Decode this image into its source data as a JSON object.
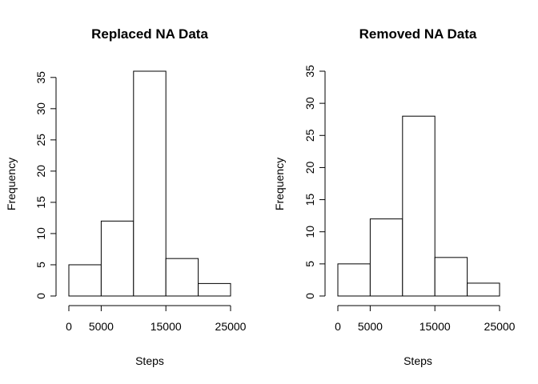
{
  "chart_data": [
    {
      "type": "bar",
      "title": "Replaced NA Data",
      "xlabel": "Steps",
      "ylabel": "Frequency",
      "bins": [
        [
          0,
          5000
        ],
        [
          5000,
          10000
        ],
        [
          10000,
          15000
        ],
        [
          15000,
          20000
        ],
        [
          20000,
          25000
        ]
      ],
      "values": [
        5,
        12,
        36,
        6,
        2
      ],
      "xticks": [
        0,
        5000,
        15000,
        25000
      ],
      "xtick_labels": [
        "0",
        "5000",
        "15000",
        "25000"
      ],
      "xlim": [
        0,
        25000
      ],
      "yticks": [
        0,
        5,
        10,
        15,
        20,
        25,
        30,
        35
      ],
      "ytick_labels": [
        "0",
        "5",
        "10",
        "15",
        "20",
        "25",
        "30",
        "35"
      ],
      "ylim": [
        0,
        36
      ],
      "grid": false,
      "bar_fill": "#ffffff",
      "bar_stroke": "#000000"
    },
    {
      "type": "bar",
      "title": "Removed NA Data",
      "xlabel": "Steps",
      "ylabel": "Frequency",
      "bins": [
        [
          0,
          5000
        ],
        [
          5000,
          10000
        ],
        [
          10000,
          15000
        ],
        [
          15000,
          20000
        ],
        [
          20000,
          25000
        ]
      ],
      "values": [
        5,
        12,
        28,
        6,
        2
      ],
      "xticks": [
        0,
        5000,
        15000,
        25000
      ],
      "xtick_labels": [
        "0",
        "5000",
        "15000",
        "25000"
      ],
      "xlim": [
        0,
        25000
      ],
      "yticks": [
        0,
        5,
        10,
        15,
        20,
        25,
        30,
        35
      ],
      "ytick_labels": [
        "0",
        "5",
        "10",
        "15",
        "20",
        "25",
        "30",
        "35"
      ],
      "ylim": [
        0,
        35
      ],
      "grid": false,
      "bar_fill": "#ffffff",
      "bar_stroke": "#000000"
    }
  ]
}
